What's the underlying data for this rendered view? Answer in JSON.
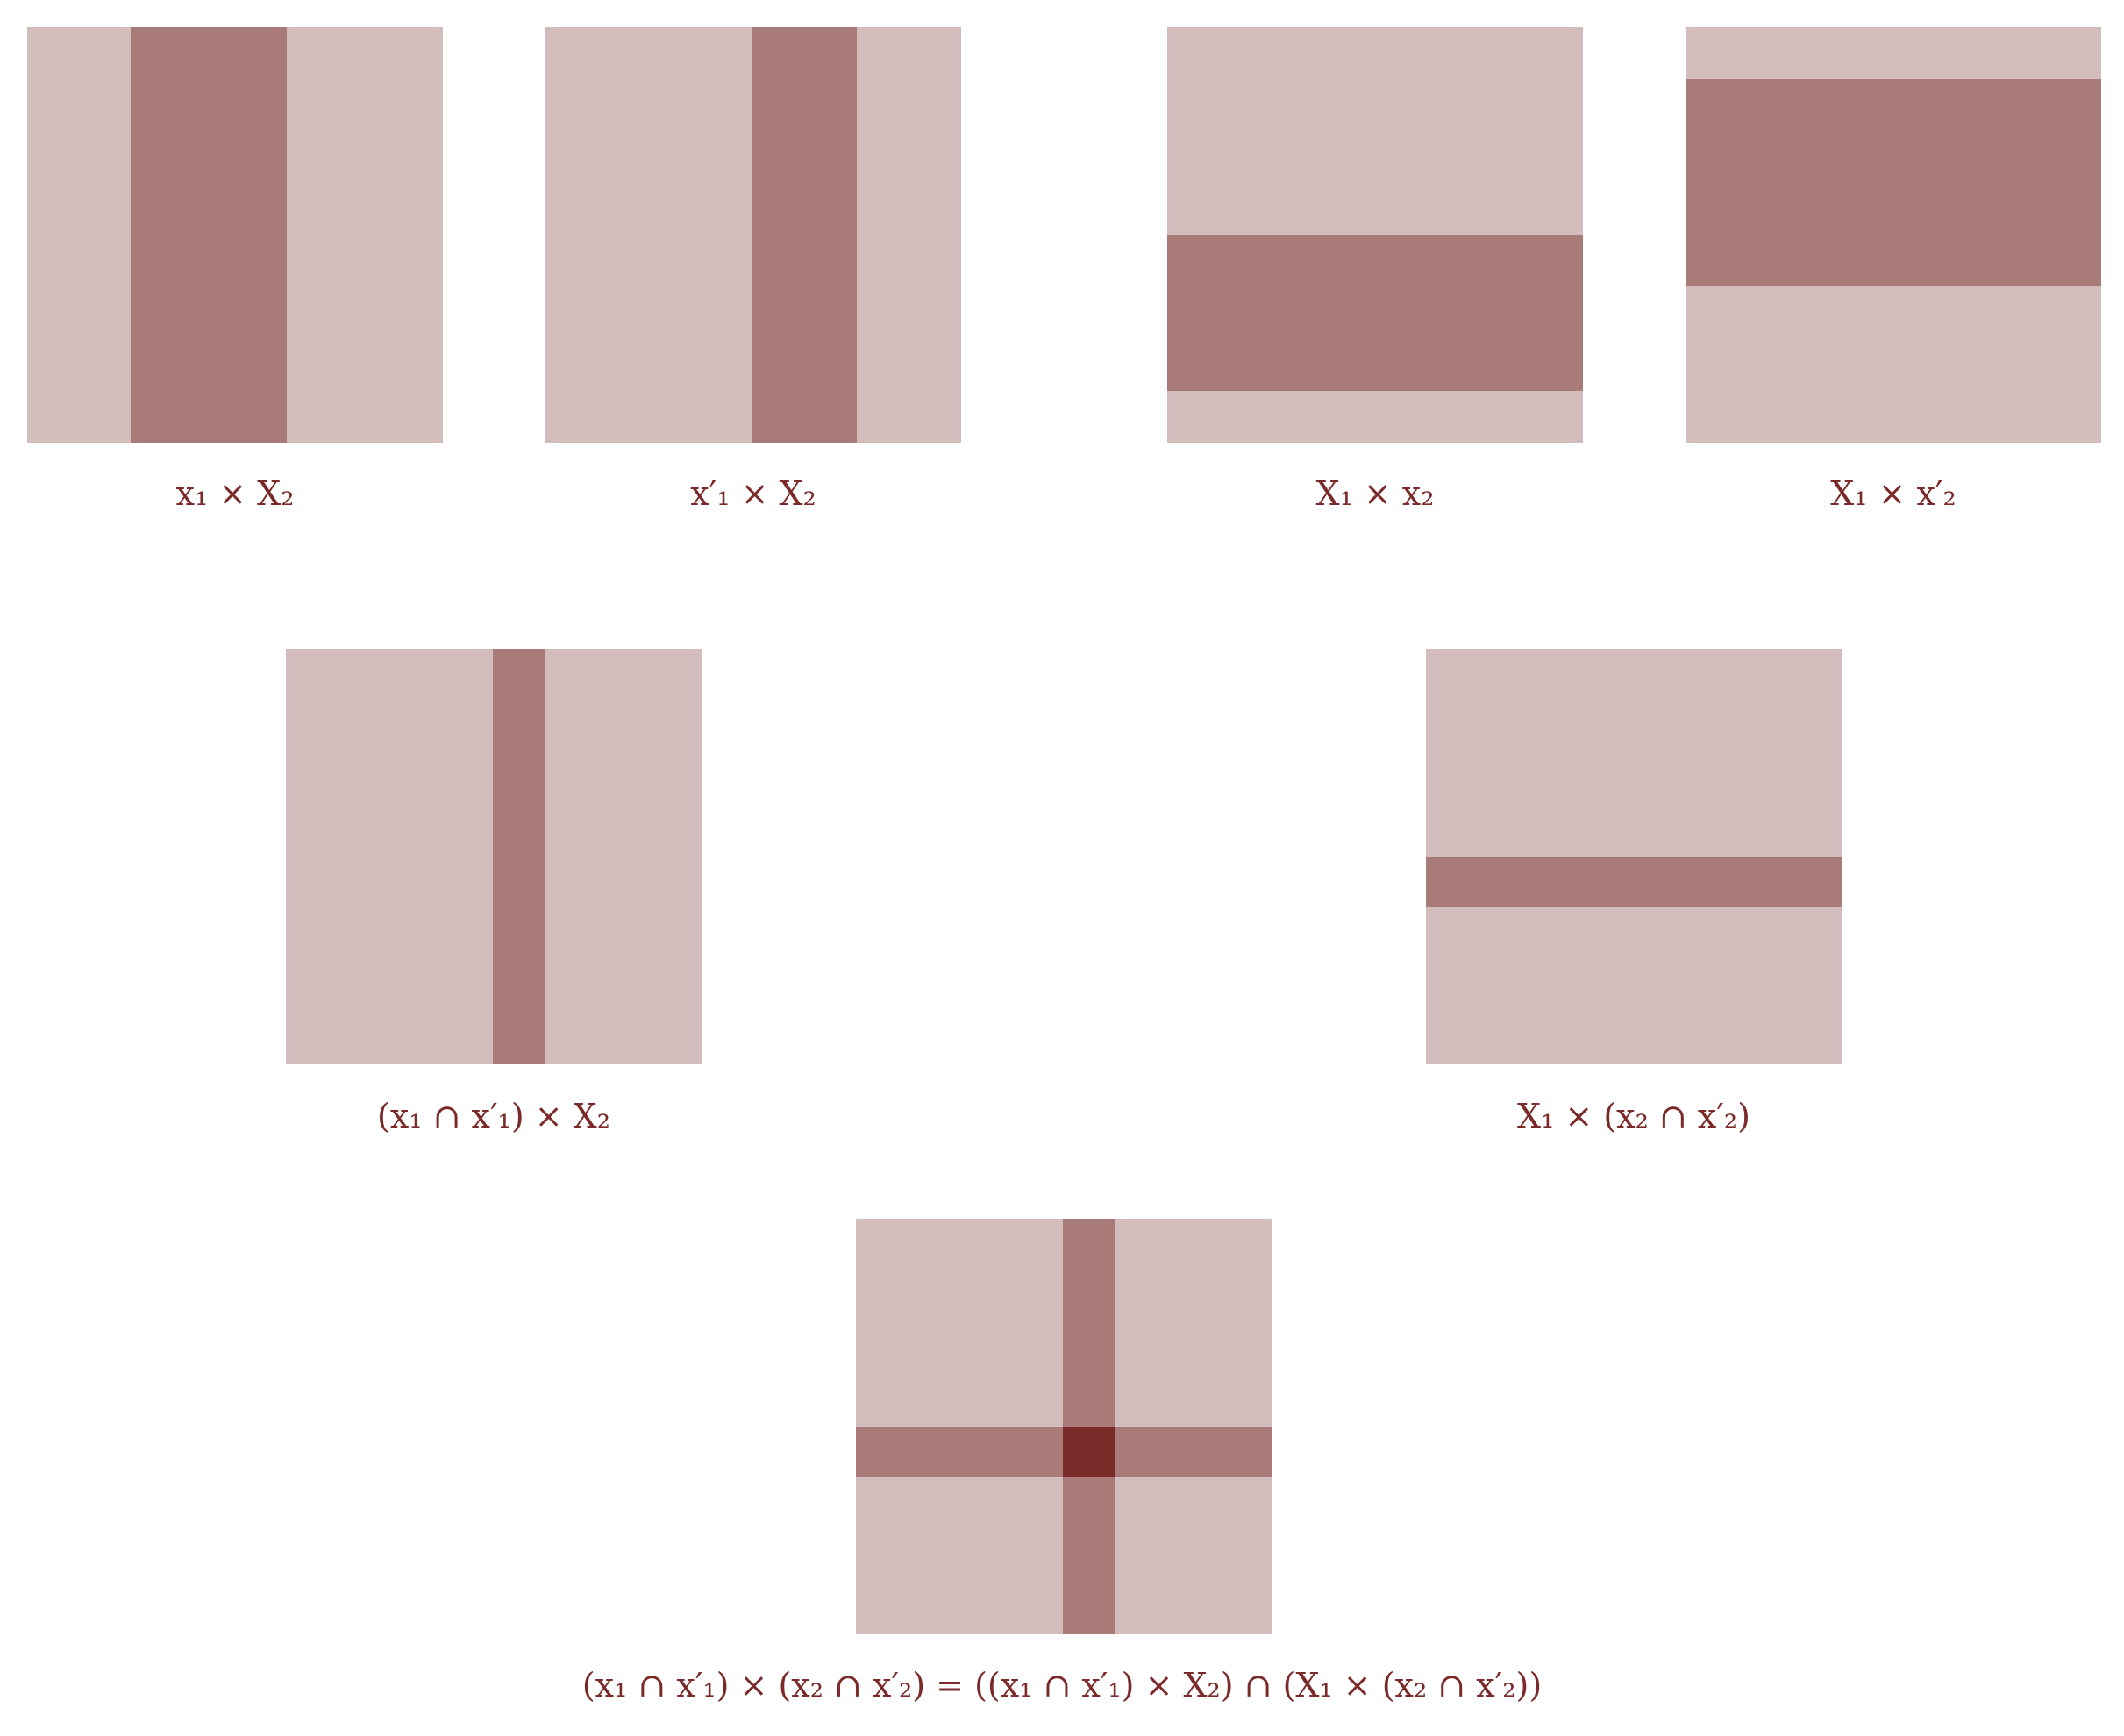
{
  "colors": {
    "background": "#ffffff",
    "set_fill": "#d2bcbc",
    "band_fill": "#a87b79",
    "intersection_fill": "#7b2a2a",
    "label_color": "#7b2a2a"
  },
  "panels": [
    {
      "id": "x1-times-X2",
      "caption": "x₁ × X₂"
    },
    {
      "id": "x1prime-times-X2",
      "caption": "x′₁ × X₂"
    },
    {
      "id": "X1-times-x2",
      "caption": "X₁ × x₂"
    },
    {
      "id": "X1-times-x2prime",
      "caption": "X₁ × x′₂"
    },
    {
      "id": "x1-cap-x1prime-times-X2",
      "caption": "(x₁ ∩ x′₁) × X₂"
    },
    {
      "id": "X1-times-x2-cap-x2prime",
      "caption": "X₁ × (x₂ ∩ x′₂)"
    },
    {
      "id": "product-of-intersections",
      "caption": "(x₁ ∩ x′₁) × (x₂ ∩ x′₂) = ((x₁ ∩ x′₁) × X₂) ∩ (X₁ × (x₂ ∩ x′₂))"
    }
  ]
}
